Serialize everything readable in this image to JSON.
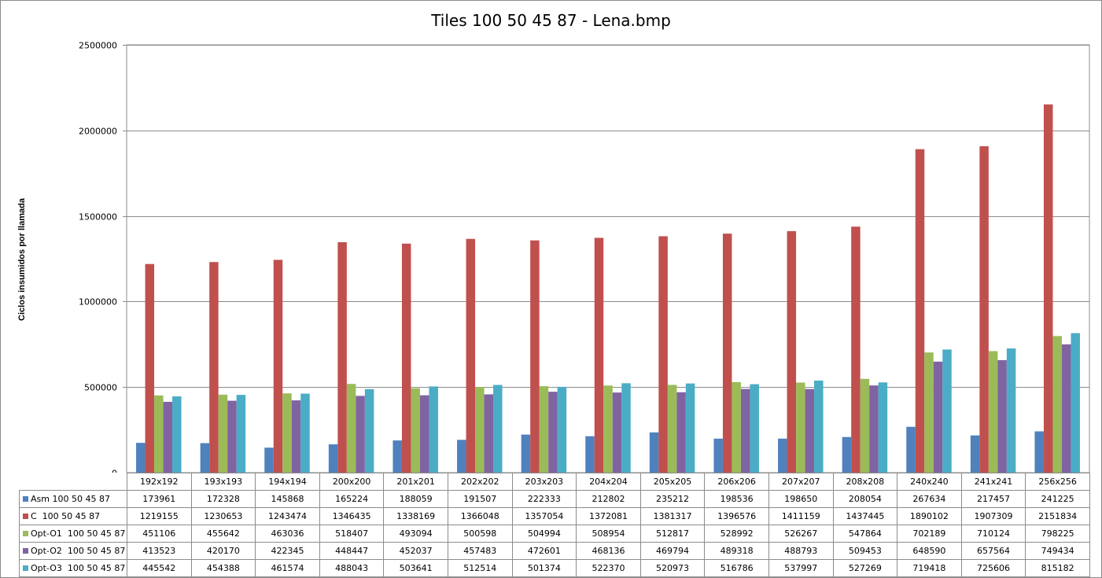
{
  "chart_data": {
    "type": "bar",
    "title": "Tiles 100 50 45 87 - Lena.bmp",
    "xlabel": "",
    "ylabel": "Ciclos insumidos por llamada",
    "ylim": [
      0,
      2500000
    ],
    "yticks": [
      "0",
      "500000",
      "1000000",
      "1500000",
      "2000000",
      "2500000"
    ],
    "grid": true,
    "legend": "data-table",
    "categories": [
      "192x192",
      "193x193",
      "194x194",
      "200x200",
      "201x201",
      "202x202",
      "203x203",
      "204x204",
      "205x205",
      "206x206",
      "207x207",
      "208x208",
      "240x240",
      "241x241",
      "256x256"
    ],
    "series": [
      {
        "name": "Asm 100 50 45 87",
        "color": "#4f81bd",
        "values": [
          173961,
          172328,
          145868,
          165224,
          188059,
          191507,
          222333,
          212802,
          235212,
          198536,
          198650,
          208054,
          267634,
          217457,
          241225
        ]
      },
      {
        "name": "C  100 50 45 87",
        "color": "#c0504d",
        "values": [
          1219155,
          1230653,
          1243474,
          1346435,
          1338169,
          1366048,
          1357054,
          1372081,
          1381317,
          1396576,
          1411159,
          1437445,
          1890102,
          1907309,
          2151834
        ]
      },
      {
        "name": "Opt-O1  100 50 45 87",
        "color": "#9bbb59",
        "values": [
          451106,
          455642,
          463036,
          518407,
          493094,
          500598,
          504994,
          508954,
          512817,
          528992,
          526267,
          547864,
          702189,
          710124,
          798225
        ]
      },
      {
        "name": "Opt-O2  100 50 45 87",
        "color": "#8064a2",
        "values": [
          413523,
          420170,
          422345,
          448447,
          452037,
          457483,
          472601,
          468136,
          469794,
          489318,
          488793,
          509453,
          648590,
          657564,
          749434
        ]
      },
      {
        "name": "Opt-O3  100 50 45 87",
        "color": "#4bacc6",
        "values": [
          445542,
          454388,
          461574,
          488043,
          503641,
          512514,
          501374,
          522370,
          520973,
          516786,
          537997,
          527269,
          719418,
          725606,
          815182
        ]
      }
    ]
  }
}
